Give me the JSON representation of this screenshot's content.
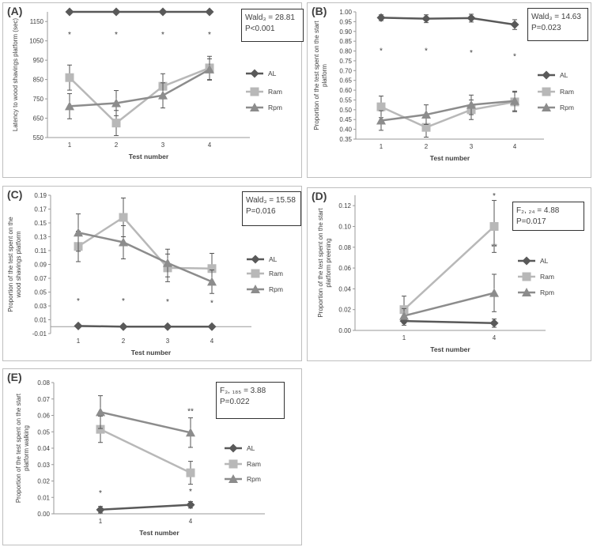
{
  "chart_data": [
    {
      "type": "line",
      "panel_label": "(A)",
      "xlabel": "Test number",
      "ylabel": "Latency to wood shavings platform (sec)",
      "x": [
        "1",
        "2",
        "3",
        "4"
      ],
      "ylim": [
        550,
        1200
      ],
      "yticks": [
        "550",
        "650",
        "750",
        "850",
        "950",
        "1050",
        "1150"
      ],
      "stat_lines": [
        "Wald₃ = 28.81",
        "P<0.001"
      ],
      "annotations": [
        {
          "text": "*",
          "x": "1",
          "y": 1085
        },
        {
          "text": "*",
          "x": "2",
          "y": 1085
        },
        {
          "text": "*",
          "x": "3",
          "y": 1085
        },
        {
          "text": "*",
          "x": "4",
          "y": 1085
        }
      ],
      "legend": "right",
      "series": [
        {
          "name": "AL",
          "marker": "diamond",
          "color": "#595959",
          "values": [
            1200,
            1200,
            1200,
            1200
          ],
          "errors": [
            0,
            0,
            0,
            0
          ]
        },
        {
          "name": "Ram",
          "marker": "square",
          "color": "#b8b8b8",
          "values": [
            860,
            625,
            815,
            910
          ],
          "errors": [
            65,
            65,
            65,
            60
          ]
        },
        {
          "name": "Rpm",
          "marker": "triangle",
          "color": "#8c8c8c",
          "values": [
            712,
            728,
            768,
            902
          ],
          "errors": [
            65,
            65,
            65,
            55
          ]
        }
      ]
    },
    {
      "type": "line",
      "panel_label": "(B)",
      "xlabel": "Test number",
      "ylabel": "Proportion of the test spent on the start platform",
      "x": [
        "1",
        "2",
        "3",
        "4"
      ],
      "ylim": [
        0.35,
        1.0
      ],
      "yticks": [
        "0.35",
        "0.40",
        "0.45",
        "0.50",
        "0.55",
        "0.60",
        "0.65",
        "0.70",
        "0.75",
        "0.80",
        "0.85",
        "0.90",
        "0.95",
        "1.00"
      ],
      "stat_lines": [
        "Wald₃ = 14.63",
        "P=0.023"
      ],
      "annotations": [
        {
          "text": "*",
          "x": "1",
          "y": 0.805
        },
        {
          "text": "*",
          "x": "2",
          "y": 0.805
        },
        {
          "text": "*",
          "x": "3",
          "y": 0.795
        },
        {
          "text": "*",
          "x": "4",
          "y": 0.775
        }
      ],
      "legend": "right",
      "series": [
        {
          "name": "AL",
          "marker": "diamond",
          "color": "#595959",
          "values": [
            0.97,
            0.965,
            0.968,
            0.935
          ],
          "errors": [
            0.015,
            0.02,
            0.02,
            0.025
          ]
        },
        {
          "name": "Ram",
          "marker": "square",
          "color": "#b8b8b8",
          "values": [
            0.515,
            0.41,
            0.5,
            0.54
          ],
          "errors": [
            0.055,
            0.05,
            0.05,
            0.05
          ]
        },
        {
          "name": "Rpm",
          "marker": "triangle",
          "color": "#8c8c8c",
          "values": [
            0.445,
            0.475,
            0.525,
            0.545
          ],
          "errors": [
            0.05,
            0.05,
            0.05,
            0.05
          ]
        }
      ]
    },
    {
      "type": "line",
      "panel_label": "(C)",
      "xlabel": "Test number",
      "ylabel": "Proportion of the test spent on the wood shavings platform",
      "x": [
        "1",
        "2",
        "3",
        "4"
      ],
      "ylim": [
        -0.01,
        0.19
      ],
      "yticks": [
        "-0.01",
        "0.01",
        "0.03",
        "0.05",
        "0.07",
        "0.09",
        "0.11",
        "0.13",
        "0.15",
        "0.17",
        "0.19"
      ],
      "stat_lines": [
        "Wald₃ = 15.58",
        "P=0.016"
      ],
      "annotations": [
        {
          "text": "*",
          "x": "1",
          "y": 0.038
        },
        {
          "text": "*",
          "x": "2",
          "y": 0.038
        },
        {
          "text": "*",
          "x": "3",
          "y": 0.037
        },
        {
          "text": "*",
          "x": "4",
          "y": 0.035
        }
      ],
      "legend": "right",
      "series": [
        {
          "name": "AL",
          "marker": "diamond",
          "color": "#595959",
          "values": [
            0.001,
            0.0,
            0.0,
            0.0
          ],
          "errors": [
            0,
            0,
            0,
            0
          ]
        },
        {
          "name": "Ram",
          "marker": "square",
          "color": "#b8b8b8",
          "values": [
            0.116,
            0.158,
            0.085,
            0.084
          ],
          "errors": [
            0.022,
            0.028,
            0.02,
            0.022
          ]
        },
        {
          "name": "Rpm",
          "marker": "triangle",
          "color": "#8c8c8c",
          "values": [
            0.136,
            0.122,
            0.092,
            0.065
          ],
          "errors": [
            0.027,
            0.024,
            0.02,
            0.017
          ]
        }
      ]
    },
    {
      "type": "line",
      "panel_label": "(D)",
      "xlabel": "Test number",
      "ylabel": "Proportion of the test spent on the start platform preening",
      "x": [
        "1",
        "4"
      ],
      "ylim": [
        0,
        0.13
      ],
      "yticks": [
        "0.00",
        "0.02",
        "0.04",
        "0.06",
        "0.08",
        "0.10",
        "0.12"
      ],
      "stat_lines": [
        "F₂, ₂₄ = 4.88",
        "P=0.017"
      ],
      "annotations": [
        {
          "text": "*",
          "x": "4",
          "y": 0.13
        },
        {
          "text": "**",
          "x": "4",
          "y": 0.081
        }
      ],
      "legend": "right",
      "series": [
        {
          "name": "AL",
          "marker": "diamond",
          "color": "#595959",
          "values": [
            0.009,
            0.007
          ],
          "errors": [
            0.004,
            0.004
          ]
        },
        {
          "name": "Ram",
          "marker": "square",
          "color": "#b8b8b8",
          "values": [
            0.02,
            0.1
          ],
          "errors": [
            0.013,
            0.025
          ]
        },
        {
          "name": "Rpm",
          "marker": "triangle",
          "color": "#8c8c8c",
          "values": [
            0.014,
            0.036
          ],
          "errors": [
            0.007,
            0.018
          ]
        }
      ]
    },
    {
      "type": "line",
      "panel_label": "(E)",
      "xlabel": "Test number",
      "ylabel": "Proportion of the test spent on the start platform walking",
      "x": [
        "1",
        "4"
      ],
      "ylim": [
        0,
        0.08
      ],
      "yticks": [
        "0.00",
        "0.01",
        "0.02",
        "0.03",
        "0.04",
        "0.05",
        "0.06",
        "0.07",
        "0.08"
      ],
      "stat_lines": [
        "F₃, ₁₈₅ = 3.88",
        "P=0.022"
      ],
      "annotations": [
        {
          "text": "*",
          "x": "1",
          "y": 0.013
        },
        {
          "text": "**",
          "x": "4",
          "y": 0.063
        },
        {
          "text": "*",
          "x": "4",
          "y": 0.014
        }
      ],
      "legend": "right",
      "series": [
        {
          "name": "AL",
          "marker": "diamond",
          "color": "#595959",
          "values": [
            0.0025,
            0.0055
          ],
          "errors": [
            0.002,
            0.002
          ]
        },
        {
          "name": "Ram",
          "marker": "square",
          "color": "#b8b8b8",
          "values": [
            0.0515,
            0.025
          ],
          "errors": [
            0.008,
            0.007
          ]
        },
        {
          "name": "Rpm",
          "marker": "triangle",
          "color": "#8c8c8c",
          "values": [
            0.062,
            0.0495
          ],
          "errors": [
            0.01,
            0.009
          ]
        }
      ]
    }
  ]
}
